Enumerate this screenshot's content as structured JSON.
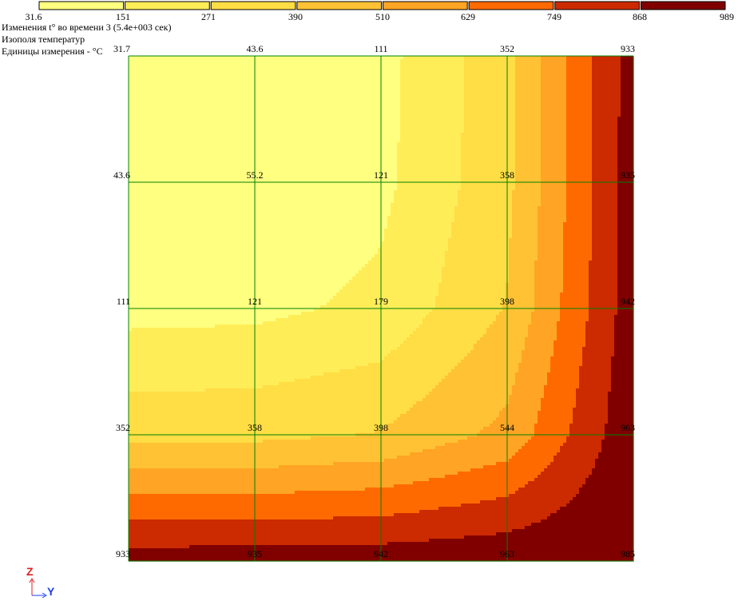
{
  "info": {
    "line1": "Изменения t° во времени 3 (5.4e+003 сек)",
    "line2": "Изополя температур",
    "line3": "Единицы измерения - °С"
  },
  "axes": {
    "z_label": "Z",
    "y_label": "Y"
  },
  "colors": {
    "bands": [
      "#FFFF80",
      "#FFED58",
      "#FFDD44",
      "#FFC234",
      "#FFA424",
      "#FF6A00",
      "#CC2A00",
      "#800000"
    ],
    "grid": "#008000"
  },
  "chart_data": {
    "type": "heatmap",
    "legend": {
      "ticks": [
        "31.6",
        "151",
        "271",
        "390",
        "510",
        "629",
        "749",
        "868",
        "989"
      ],
      "tick_values": [
        31.6,
        151,
        271,
        390,
        510,
        629,
        749,
        868,
        989
      ]
    },
    "grid_nodes": {
      "rows": 5,
      "cols": 5,
      "labels": [
        [
          "31.7",
          "43.6",
          "111",
          "352",
          "933"
        ],
        [
          "43.6",
          "55.2",
          "121",
          "358",
          "935"
        ],
        [
          "111",
          "121",
          "179",
          "398",
          "942"
        ],
        [
          "352",
          "358",
          "398",
          "544",
          "963"
        ],
        [
          "933",
          "935",
          "942",
          "963",
          "985"
        ]
      ],
      "values": [
        [
          31.7,
          43.6,
          111,
          352,
          933
        ],
        [
          43.6,
          55.2,
          121,
          358,
          935
        ],
        [
          111,
          121,
          179,
          398,
          942
        ],
        [
          352,
          358,
          398,
          544,
          963
        ],
        [
          933,
          935,
          942,
          963,
          985
        ]
      ]
    }
  }
}
